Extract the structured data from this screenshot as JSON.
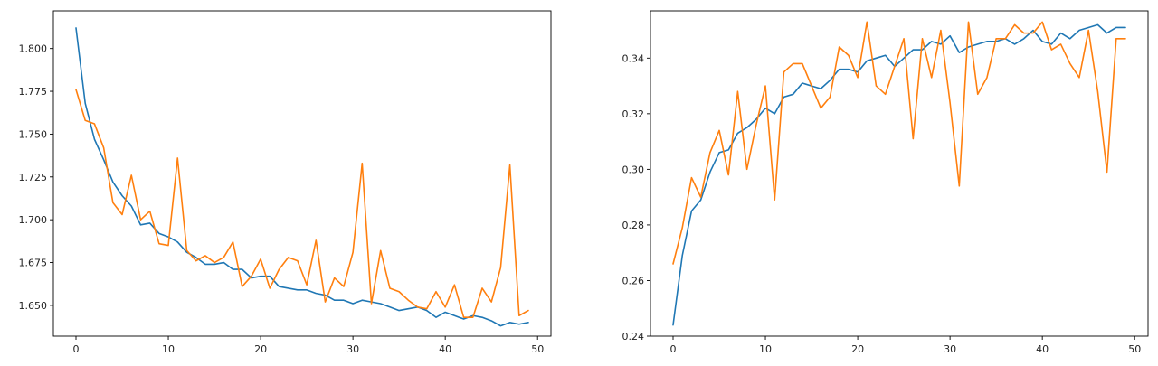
{
  "chart_data": [
    {
      "type": "line",
      "xlim": [
        -2.45,
        51.45
      ],
      "ylim": [
        1.632,
        1.822
      ],
      "xticks": [
        0,
        10,
        20,
        30,
        40,
        50
      ],
      "yticks": [
        1.65,
        1.675,
        1.7,
        1.725,
        1.75,
        1.775,
        1.8
      ],
      "xtick_labels": [
        "0",
        "10",
        "20",
        "30",
        "40",
        "50"
      ],
      "ytick_labels": [
        "1.650",
        "1.675",
        "1.700",
        "1.725",
        "1.750",
        "1.775",
        "1.800"
      ],
      "grid": false,
      "series": [
        {
          "color": "#1f77b4",
          "x": [
            0,
            1,
            2,
            3,
            4,
            5,
            6,
            7,
            8,
            9,
            10,
            11,
            12,
            13,
            14,
            15,
            16,
            17,
            18,
            19,
            20,
            21,
            22,
            23,
            24,
            25,
            26,
            27,
            28,
            29,
            30,
            31,
            32,
            33,
            34,
            35,
            36,
            37,
            38,
            39,
            40,
            41,
            42,
            43,
            44,
            45,
            46,
            47,
            48,
            49
          ],
          "y": [
            1.812,
            1.768,
            1.747,
            1.735,
            1.722,
            1.714,
            1.708,
            1.697,
            1.698,
            1.692,
            1.69,
            1.687,
            1.681,
            1.678,
            1.674,
            1.674,
            1.675,
            1.671,
            1.671,
            1.666,
            1.667,
            1.667,
            1.661,
            1.66,
            1.659,
            1.659,
            1.657,
            1.656,
            1.653,
            1.653,
            1.651,
            1.653,
            1.652,
            1.651,
            1.649,
            1.647,
            1.648,
            1.649,
            1.647,
            1.643,
            1.646,
            1.644,
            1.642,
            1.644,
            1.643,
            1.641,
            1.638,
            1.64,
            1.639,
            1.64
          ]
        },
        {
          "color": "#ff7f0e",
          "x": [
            0,
            1,
            2,
            3,
            4,
            5,
            6,
            7,
            8,
            9,
            10,
            11,
            12,
            13,
            14,
            15,
            16,
            17,
            18,
            19,
            20,
            21,
            22,
            23,
            24,
            25,
            26,
            27,
            28,
            29,
            30,
            31,
            32,
            33,
            34,
            35,
            36,
            37,
            38,
            39,
            40,
            41,
            42,
            43,
            44,
            45,
            46,
            47,
            48,
            49
          ],
          "y": [
            1.776,
            1.758,
            1.756,
            1.742,
            1.71,
            1.703,
            1.726,
            1.7,
            1.705,
            1.686,
            1.685,
            1.736,
            1.682,
            1.676,
            1.679,
            1.675,
            1.678,
            1.687,
            1.661,
            1.667,
            1.677,
            1.66,
            1.671,
            1.678,
            1.676,
            1.662,
            1.688,
            1.652,
            1.666,
            1.661,
            1.681,
            1.733,
            1.651,
            1.682,
            1.66,
            1.658,
            1.653,
            1.649,
            1.648,
            1.658,
            1.649,
            1.662,
            1.643,
            1.643,
            1.66,
            1.652,
            1.672,
            1.732,
            1.644,
            1.647
          ]
        }
      ]
    },
    {
      "type": "line",
      "xlim": [
        -2.45,
        51.45
      ],
      "ylim": [
        0.24,
        0.357
      ],
      "xticks": [
        0,
        10,
        20,
        30,
        40,
        50
      ],
      "yticks": [
        0.24,
        0.26,
        0.28,
        0.3,
        0.32,
        0.34
      ],
      "xtick_labels": [
        "0",
        "10",
        "20",
        "30",
        "40",
        "50"
      ],
      "ytick_labels": [
        "0.24",
        "0.26",
        "0.28",
        "0.30",
        "0.32",
        "0.34"
      ],
      "grid": false,
      "series": [
        {
          "color": "#1f77b4",
          "x": [
            0,
            1,
            2,
            3,
            4,
            5,
            6,
            7,
            8,
            9,
            10,
            11,
            12,
            13,
            14,
            15,
            16,
            17,
            18,
            19,
            20,
            21,
            22,
            23,
            24,
            25,
            26,
            27,
            28,
            29,
            30,
            31,
            32,
            33,
            34,
            35,
            36,
            37,
            38,
            39,
            40,
            41,
            42,
            43,
            44,
            45,
            46,
            47,
            48,
            49
          ],
          "y": [
            0.244,
            0.269,
            0.285,
            0.289,
            0.299,
            0.306,
            0.307,
            0.313,
            0.315,
            0.318,
            0.322,
            0.32,
            0.326,
            0.327,
            0.331,
            0.33,
            0.329,
            0.332,
            0.336,
            0.336,
            0.335,
            0.339,
            0.34,
            0.341,
            0.337,
            0.34,
            0.343,
            0.343,
            0.346,
            0.345,
            0.348,
            0.342,
            0.344,
            0.345,
            0.346,
            0.346,
            0.347,
            0.345,
            0.347,
            0.35,
            0.346,
            0.345,
            0.349,
            0.347,
            0.35,
            0.351,
            0.352,
            0.349,
            0.351,
            0.351
          ]
        },
        {
          "color": "#ff7f0e",
          "x": [
            0,
            1,
            2,
            3,
            4,
            5,
            6,
            7,
            8,
            9,
            10,
            11,
            12,
            13,
            14,
            15,
            16,
            17,
            18,
            19,
            20,
            21,
            22,
            23,
            24,
            25,
            26,
            27,
            28,
            29,
            30,
            31,
            32,
            33,
            34,
            35,
            36,
            37,
            38,
            39,
            40,
            41,
            42,
            43,
            44,
            45,
            46,
            47,
            48,
            49
          ],
          "y": [
            0.266,
            0.279,
            0.297,
            0.29,
            0.306,
            0.314,
            0.298,
            0.328,
            0.3,
            0.316,
            0.33,
            0.289,
            0.335,
            0.338,
            0.338,
            0.33,
            0.322,
            0.326,
            0.344,
            0.341,
            0.333,
            0.353,
            0.33,
            0.327,
            0.337,
            0.347,
            0.311,
            0.347,
            0.333,
            0.35,
            0.324,
            0.294,
            0.353,
            0.327,
            0.333,
            0.347,
            0.347,
            0.352,
            0.349,
            0.349,
            0.353,
            0.343,
            0.345,
            0.338,
            0.333,
            0.35,
            0.328,
            0.299,
            0.347,
            0.347
          ]
        }
      ]
    }
  ]
}
